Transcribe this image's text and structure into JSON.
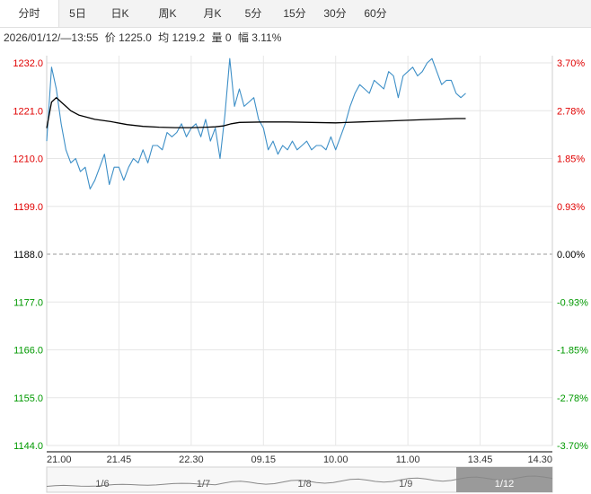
{
  "tabs": [
    {
      "label": "分时",
      "active": true
    },
    {
      "label": "5日",
      "active": false
    },
    {
      "label": "日K",
      "active": false
    },
    {
      "label": "周K",
      "active": false
    },
    {
      "label": "月K",
      "active": false
    },
    {
      "label": "5分",
      "active": false
    },
    {
      "label": "15分",
      "active": false
    },
    {
      "label": "30分",
      "active": false
    },
    {
      "label": "60分",
      "active": false
    }
  ],
  "info": {
    "datetime": "2026/01/12/—13:55",
    "price": "价 1225.0",
    "avg": "均 1219.2",
    "volume": "量 0",
    "change": "幅 3.11%"
  },
  "colors": {
    "up": "#e00000",
    "down": "#009900",
    "neutral": "#000000",
    "price_line": "#3d8fc7",
    "avg_line": "#000000",
    "grid": "#e6e6e6"
  },
  "chart_data": {
    "type": "line",
    "ylim": [
      1144.0,
      1232.0
    ],
    "base": 1188.0,
    "y_ticks_left": [
      "1232.0",
      "1221.0",
      "1210.0",
      "1199.0",
      "1188.0",
      "1177.0",
      "1166.0",
      "1155.0",
      "1144.0"
    ],
    "y_ticks_right": [
      "3.70%",
      "2.78%",
      "1.85%",
      "0.93%",
      "0.00%",
      "-0.93%",
      "-1.85%",
      "-2.78%",
      "-3.70%"
    ],
    "x_ticks": [
      "21.00",
      "21.45",
      "22.30",
      "09.15",
      "10.00",
      "11.00",
      "13.45",
      "14.30"
    ],
    "x_tick_index": [
      0,
      45,
      90,
      135,
      180,
      225,
      270,
      315
    ],
    "total_points": 316,
    "series": [
      {
        "key": "price",
        "x": [
          0,
          3,
          6,
          9,
          12,
          15,
          18,
          21,
          24,
          27,
          30,
          33,
          36,
          39,
          42,
          45,
          48,
          51,
          54,
          57,
          60,
          63,
          66,
          69,
          72,
          75,
          78,
          81,
          84,
          87,
          90,
          93,
          96,
          99,
          102,
          105,
          108,
          111,
          114,
          117,
          120,
          123,
          126,
          129,
          132,
          135,
          138,
          141,
          144,
          147,
          150,
          153,
          156,
          159,
          162,
          165,
          168,
          171,
          174,
          177,
          180,
          183,
          186,
          189,
          192,
          195,
          198,
          201,
          204,
          207,
          210,
          213,
          216,
          219,
          222,
          225,
          228,
          231,
          234,
          237,
          240,
          243,
          246,
          249,
          252,
          255,
          258,
          261
        ],
        "values": [
          1214.0,
          1231.0,
          1226.0,
          1218.0,
          1212.0,
          1209.0,
          1210.0,
          1207.0,
          1208.0,
          1203.0,
          1205.0,
          1208.0,
          1211.0,
          1204.0,
          1208.0,
          1208.0,
          1205.0,
          1208.0,
          1210.0,
          1209.0,
          1212.0,
          1209.0,
          1213.0,
          1213.0,
          1212.0,
          1216.0,
          1215.0,
          1216.0,
          1218.0,
          1215.0,
          1217.0,
          1218.0,
          1215.0,
          1219.0,
          1214.0,
          1217.0,
          1210.0,
          1220.0,
          1233.0,
          1222.0,
          1226.0,
          1222.0,
          1223.0,
          1224.0,
          1219.0,
          1217.0,
          1212.0,
          1214.0,
          1211.0,
          1213.0,
          1212.0,
          1214.0,
          1212.0,
          1213.0,
          1214.0,
          1212.0,
          1213.0,
          1213.0,
          1212.0,
          1215.0,
          1212.0,
          1215.0,
          1218.0,
          1222.0,
          1225.0,
          1227.0,
          1226.0,
          1225.0,
          1228.0,
          1227.0,
          1226.0,
          1230.0,
          1229.0,
          1224.0,
          1229.0,
          1230.0,
          1231.0,
          1229.0,
          1230.0,
          1232.0,
          1233.0,
          1230.0,
          1227.0,
          1228.0,
          1228.0,
          1225.0,
          1224.0,
          1225.0
        ]
      },
      {
        "key": "avg",
        "x": [
          0,
          3,
          6,
          9,
          12,
          15,
          20,
          30,
          40,
          50,
          60,
          70,
          80,
          90,
          100,
          105,
          110,
          115,
          120,
          135,
          150,
          165,
          180,
          195,
          210,
          225,
          240,
          255,
          261
        ],
        "values": [
          1217.0,
          1223.0,
          1224.0,
          1223.0,
          1222.0,
          1221.0,
          1220.0,
          1219.0,
          1218.5,
          1217.8,
          1217.4,
          1217.2,
          1217.1,
          1217.1,
          1217.2,
          1217.3,
          1217.5,
          1218.0,
          1218.3,
          1218.4,
          1218.4,
          1218.3,
          1218.2,
          1218.4,
          1218.6,
          1218.8,
          1219.0,
          1219.2,
          1219.2
        ]
      }
    ],
    "navigator": {
      "labels": [
        "1/6",
        "1/7",
        "1/8",
        "1/9",
        "1/12"
      ],
      "selected": "1/12"
    }
  }
}
